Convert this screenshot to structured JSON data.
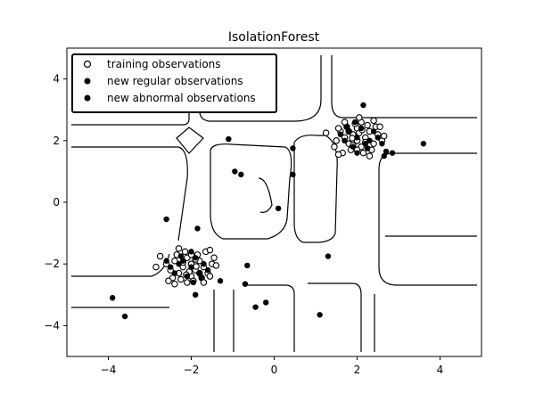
{
  "chart_data": {
    "type": "scatter",
    "title": "IsolationForest",
    "xlabel": "",
    "ylabel": "",
    "xlim": [
      -5,
      5
    ],
    "ylim": [
      -5,
      5
    ],
    "x_ticks": [
      -4,
      -2,
      0,
      2,
      4
    ],
    "y_ticks": [
      -4,
      -2,
      0,
      2,
      4
    ],
    "x_tick_labels": [
      "−4",
      "−2",
      "0",
      "2",
      "4"
    ],
    "y_tick_labels": [
      "−4",
      "−2",
      "0",
      "2",
      "4"
    ],
    "grid": false,
    "legend": {
      "placement": "top-left",
      "entries": [
        {
          "label": "training observations",
          "marker": "open-circle"
        },
        {
          "label": "new regular observations",
          "marker": "filled-circle"
        },
        {
          "label": "new abnormal observations",
          "marker": "filled-circle"
        }
      ]
    },
    "colors": {
      "marker": "#000000",
      "contour": "#000000",
      "background": "#ffffff"
    },
    "background": "decision-function contour lines (white regions)",
    "series": [
      {
        "name": "training observations",
        "marker": "open-circle",
        "points": [
          [
            -2.0,
            -2.0
          ],
          [
            -2.1,
            -1.8
          ],
          [
            -1.9,
            -2.2
          ],
          [
            -2.2,
            -2.1
          ],
          [
            -1.8,
            -1.9
          ],
          [
            -2.3,
            -2.3
          ],
          [
            -1.7,
            -2.1
          ],
          [
            -2.0,
            -2.4
          ],
          [
            -2.15,
            -1.6
          ],
          [
            -1.85,
            -1.7
          ],
          [
            -2.4,
            -1.9
          ],
          [
            -1.6,
            -2.3
          ],
          [
            -2.25,
            -2.5
          ],
          [
            -1.95,
            -2.55
          ],
          [
            -2.5,
            -2.2
          ],
          [
            -1.5,
            -2.0
          ],
          [
            -2.35,
            -1.7
          ],
          [
            -1.75,
            -2.45
          ],
          [
            -2.05,
            -2.25
          ],
          [
            -1.9,
            -1.85
          ],
          [
            -2.6,
            -2.0
          ],
          [
            -1.45,
            -1.8
          ],
          [
            -2.1,
            -2.6
          ],
          [
            -1.65,
            -1.6
          ],
          [
            -2.45,
            -2.45
          ],
          [
            -1.55,
            -2.4
          ],
          [
            -2.75,
            -1.75
          ],
          [
            -2.3,
            -1.5
          ],
          [
            -1.8,
            -2.3
          ],
          [
            -2.0,
            -1.7
          ],
          [
            -1.4,
            -2.05
          ],
          [
            -2.2,
            -1.95
          ],
          [
            -2.55,
            -2.55
          ],
          [
            -1.7,
            -2.6
          ],
          [
            -2.85,
            -2.1
          ],
          [
            -2.0,
            -2.0
          ],
          [
            -2.12,
            -2.35
          ],
          [
            -1.88,
            -2.08
          ],
          [
            -1.55,
            -1.55
          ],
          [
            -2.4,
            -2.65
          ],
          [
            2.0,
            2.0
          ],
          [
            2.1,
            1.8
          ],
          [
            1.9,
            2.2
          ],
          [
            2.2,
            2.1
          ],
          [
            1.8,
            1.9
          ],
          [
            2.3,
            2.3
          ],
          [
            1.7,
            2.1
          ],
          [
            2.0,
            2.4
          ],
          [
            2.15,
            1.6
          ],
          [
            1.85,
            1.7
          ],
          [
            2.4,
            1.9
          ],
          [
            1.6,
            2.3
          ],
          [
            2.25,
            2.5
          ],
          [
            1.95,
            2.55
          ],
          [
            2.5,
            2.2
          ],
          [
            1.5,
            2.0
          ],
          [
            2.35,
            1.7
          ],
          [
            1.75,
            2.45
          ],
          [
            2.05,
            2.25
          ],
          [
            1.9,
            1.85
          ],
          [
            2.6,
            2.0
          ],
          [
            1.45,
            1.8
          ],
          [
            2.1,
            2.6
          ],
          [
            1.65,
            1.6
          ],
          [
            2.45,
            2.45
          ],
          [
            1.55,
            2.4
          ],
          [
            1.25,
            2.25
          ],
          [
            2.3,
            1.5
          ],
          [
            1.8,
            2.3
          ],
          [
            2.0,
            1.7
          ],
          [
            2.65,
            2.15
          ],
          [
            2.2,
            1.95
          ],
          [
            2.55,
            2.45
          ],
          [
            1.7,
            2.6
          ],
          [
            2.05,
            2.75
          ],
          [
            2.0,
            2.0
          ],
          [
            2.12,
            2.35
          ],
          [
            1.88,
            2.08
          ],
          [
            1.55,
            1.55
          ],
          [
            2.4,
            2.65
          ]
        ]
      },
      {
        "name": "new regular observations",
        "marker": "filled-circle",
        "points": [
          [
            -2.0,
            -2.1
          ],
          [
            -2.2,
            -1.9
          ],
          [
            -1.8,
            -2.3
          ],
          [
            -2.3,
            -2.0
          ],
          [
            -1.9,
            -1.8
          ],
          [
            -2.1,
            -2.4
          ],
          [
            -1.7,
            -2.0
          ],
          [
            -2.4,
            -2.3
          ],
          [
            -2.0,
            -1.6
          ],
          [
            -1.6,
            -2.2
          ],
          [
            -2.5,
            -2.1
          ],
          [
            -1.95,
            -2.6
          ],
          [
            -2.25,
            -1.75
          ],
          [
            -1.75,
            -2.45
          ],
          [
            -2.6,
            -1.9
          ],
          [
            2.0,
            2.1
          ],
          [
            2.2,
            1.9
          ],
          [
            1.8,
            2.3
          ],
          [
            2.3,
            2.0
          ],
          [
            1.9,
            1.8
          ],
          [
            2.1,
            2.4
          ],
          [
            1.7,
            2.0
          ],
          [
            2.4,
            2.3
          ],
          [
            2.0,
            1.6
          ],
          [
            1.6,
            2.2
          ],
          [
            2.5,
            2.1
          ],
          [
            1.95,
            2.6
          ],
          [
            2.25,
            1.75
          ],
          [
            1.75,
            2.45
          ],
          [
            2.6,
            1.9
          ]
        ]
      },
      {
        "name": "new abnormal observations",
        "marker": "filled-circle",
        "points": [
          [
            -3.9,
            -3.1
          ],
          [
            -3.6,
            -3.7
          ],
          [
            -2.6,
            -0.55
          ],
          [
            -1.85,
            -0.85
          ],
          [
            -1.9,
            -3.0
          ],
          [
            -1.3,
            -2.55
          ],
          [
            -1.1,
            2.05
          ],
          [
            -0.95,
            1.0
          ],
          [
            -0.8,
            0.9
          ],
          [
            -0.7,
            -2.65
          ],
          [
            -0.65,
            -2.05
          ],
          [
            -0.45,
            -3.4
          ],
          [
            -0.2,
            -3.25
          ],
          [
            0.1,
            -0.2
          ],
          [
            0.45,
            1.75
          ],
          [
            0.45,
            0.9
          ],
          [
            1.1,
            -3.65
          ],
          [
            1.3,
            -1.75
          ],
          [
            2.7,
            1.65
          ],
          [
            2.85,
            1.6
          ],
          [
            3.6,
            1.9
          ],
          [
            2.65,
            1.5
          ],
          [
            2.15,
            3.15
          ]
        ]
      }
    ]
  }
}
